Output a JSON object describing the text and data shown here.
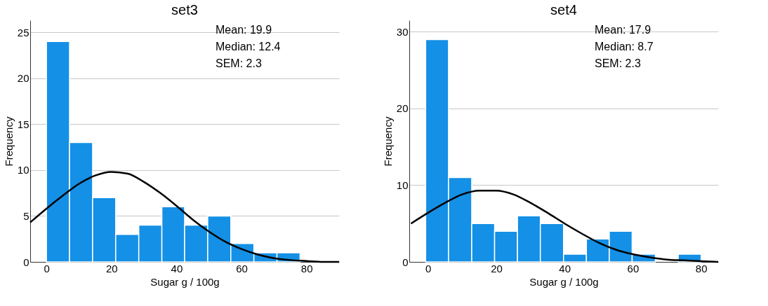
{
  "chart_data": [
    {
      "type": "histogram",
      "title": "set3",
      "xlabel": "Sugar g / 100g",
      "ylabel": "Frequency",
      "bins": [
        0,
        7.1,
        14.2,
        21.3,
        28.4,
        35.5,
        42.5,
        49.6,
        56.7,
        63.8,
        70.9,
        78.0
      ],
      "series": [
        {
          "type": "histogram",
          "color": "#1490e6",
          "values": [
            24,
            13,
            7,
            3,
            4,
            6,
            4,
            5,
            2,
            1,
            1
          ]
        },
        {
          "type": "line",
          "color": "#000000",
          "x": [
            -5,
            0,
            5,
            10,
            15,
            20,
            25,
            30,
            35,
            40,
            45,
            50,
            55,
            60,
            65,
            70,
            75,
            80,
            85,
            90
          ],
          "values": [
            4.3,
            5.8,
            7.2,
            8.5,
            9.4,
            9.8,
            9.6,
            8.7,
            7.5,
            6.1,
            4.6,
            3.3,
            2.2,
            1.4,
            0.8,
            0.4,
            0.2,
            0.1,
            0.0,
            0.0
          ]
        }
      ],
      "xlim": [
        -5,
        90
      ],
      "xticks": [
        0,
        20,
        40,
        60,
        80
      ],
      "ylim": [
        0,
        26.3
      ],
      "yticks": [
        0,
        5,
        10,
        15,
        20,
        25
      ],
      "grid": "y",
      "annotations": [
        "Mean: 19.9",
        "Median: 12.4",
        "SEM: 2.3"
      ]
    },
    {
      "type": "histogram",
      "title": "set4",
      "xlabel": "Sugar g / 100g",
      "ylabel": "Frequency",
      "bins": [
        -0.7,
        6.0,
        12.8,
        19.5,
        26.2,
        32.9,
        39.7,
        46.4,
        53.1,
        59.8,
        66.6,
        73.3,
        80.0
      ],
      "series": [
        {
          "type": "histogram",
          "color": "#1490e6",
          "values": [
            29,
            11,
            5,
            4,
            6,
            5,
            1,
            3,
            4,
            1,
            0,
            1
          ]
        },
        {
          "type": "line",
          "color": "#000000",
          "x": [
            -5,
            0,
            5,
            10,
            15,
            20,
            25,
            30,
            35,
            40,
            45,
            50,
            55,
            60,
            65,
            70,
            75,
            80,
            85
          ],
          "values": [
            5.0,
            6.4,
            7.7,
            8.8,
            9.3,
            9.3,
            8.8,
            7.7,
            6.4,
            5.0,
            3.7,
            2.5,
            1.6,
            1.0,
            0.6,
            0.3,
            0.2,
            0.1,
            0.0
          ]
        }
      ],
      "xlim": [
        -5.5,
        85
      ],
      "xticks": [
        0,
        20,
        40,
        60,
        80
      ],
      "ylim": [
        0,
        31.5
      ],
      "yticks": [
        0,
        10,
        20,
        30
      ],
      "grid": "y",
      "annotations": [
        "Mean: 17.9",
        "Median: 8.7",
        "SEM: 2.3"
      ]
    }
  ]
}
